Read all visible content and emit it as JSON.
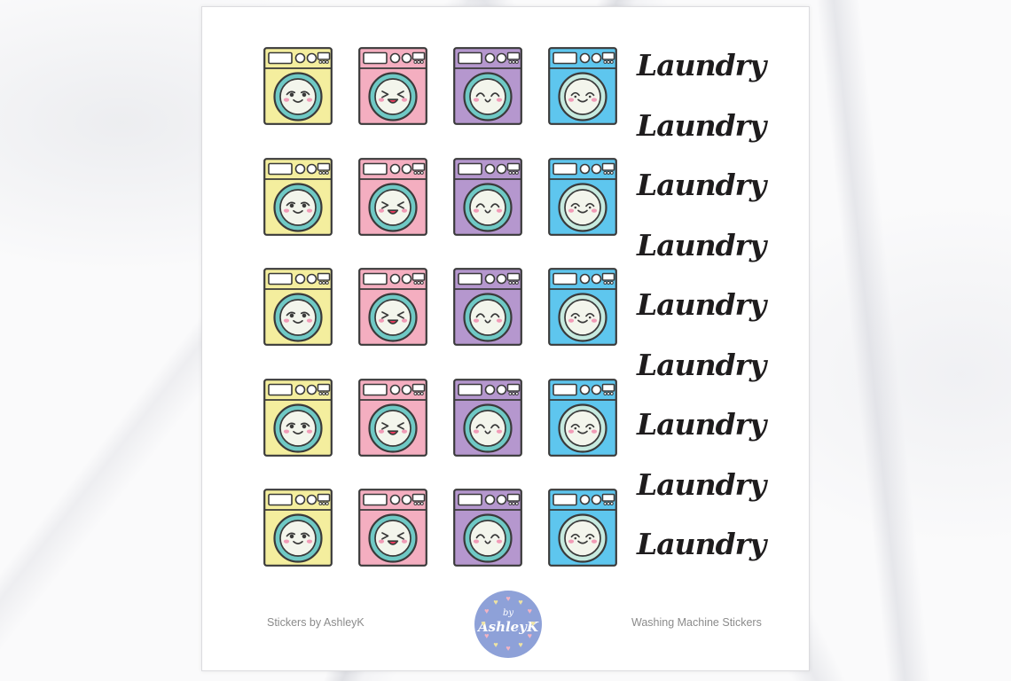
{
  "sheet": {
    "stickers": {
      "rows": 5,
      "outline_color": "#3a3a3a",
      "face_color": "#f3f5ec",
      "cheek_color": "#f19cb7",
      "tongue_color": "#ee3a5f",
      "variants": [
        {
          "id": "yellow",
          "name": "yellow washing machine",
          "body_color": "#f4ee9e",
          "ring_color": "#6fc9c5",
          "face": "side-glance-smile"
        },
        {
          "id": "pink",
          "name": "pink washing machine",
          "body_color": "#f4aec0",
          "ring_color": "#6fc9c5",
          "face": "laughing-closed-eyes"
        },
        {
          "id": "purple",
          "name": "purple washing machine",
          "body_color": "#b597ce",
          "ring_color": "#6fc9c5",
          "face": "happy-arc-eyes-open-mouth"
        },
        {
          "id": "blue",
          "name": "blue washing machine",
          "body_color": "#5ec6ee",
          "ring_color": "#c6eadf",
          "face": "content-closed-eyes-smile"
        }
      ]
    },
    "word_labels": {
      "text": "Laundry",
      "count": 9,
      "color": "#1e1c1d"
    },
    "footer": {
      "left_caption": "Stickers by AshleyK",
      "right_caption": "Washing Machine Stickers",
      "caption_color": "#8b8b8b",
      "logo": {
        "word1": "by",
        "word2": "AshleyK",
        "circle_color": "#8ea1d8",
        "text_color": "#ffffff",
        "heart_icon": "heart-icon",
        "heart_colors": [
          "#f2b3c3",
          "#eee3a3"
        ]
      }
    }
  }
}
